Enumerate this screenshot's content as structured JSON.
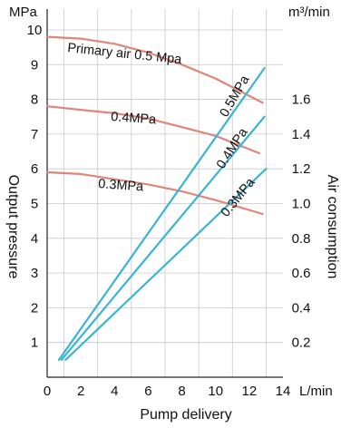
{
  "chart_data": {
    "type": "line",
    "xlabel": "Pump delivery",
    "x_unit": "L/min",
    "xlim": [
      0,
      14
    ],
    "xticks": [
      0,
      2,
      4,
      6,
      8,
      10,
      12,
      14
    ],
    "ylabel_left": "Output pressure",
    "y_unit_left": "MPa",
    "ylim_left": [
      0,
      10.6
    ],
    "yticks_left": [
      1,
      2,
      3,
      4,
      5,
      6,
      7,
      8,
      9,
      10
    ],
    "ylabel_right": "Air consumption",
    "y_unit_right": "m³/min",
    "ylim_right": [
      0,
      2.12
    ],
    "yticks_right": [
      0.2,
      0.4,
      0.6,
      0.8,
      1.0,
      1.2,
      1.4,
      1.6
    ],
    "grid": true,
    "series": [
      {
        "name": "Primary air 0.5 Mpa",
        "axis": "left",
        "kind": "output_pressure",
        "color": "#e0857a",
        "x": [
          0,
          2,
          4,
          6,
          8,
          10,
          12.8
        ],
        "y": [
          9.8,
          9.75,
          9.6,
          9.35,
          9.0,
          8.6,
          7.9
        ]
      },
      {
        "name": "0.4MPa",
        "axis": "left",
        "kind": "output_pressure",
        "color": "#e0857a",
        "x": [
          0,
          2,
          4,
          6,
          8,
          10,
          12.6
        ],
        "y": [
          7.8,
          7.7,
          7.6,
          7.45,
          7.2,
          6.95,
          6.45
        ]
      },
      {
        "name": "0.3MPa",
        "axis": "left",
        "kind": "output_pressure",
        "color": "#e0857a",
        "x": [
          0,
          2,
          4,
          6,
          8,
          10,
          12.8
        ],
        "y": [
          5.9,
          5.85,
          5.7,
          5.55,
          5.35,
          5.1,
          4.7
        ]
      },
      {
        "name": "0.5MPa",
        "axis": "right",
        "kind": "air_consumption",
        "color": "#3bb4d4",
        "x": [
          0.7,
          12.9
        ],
        "y": [
          0.1,
          1.78
        ]
      },
      {
        "name": "0.4MPa",
        "axis": "right",
        "kind": "air_consumption",
        "color": "#3bb4d4",
        "x": [
          0.85,
          12.9
        ],
        "y": [
          0.1,
          1.5
        ]
      },
      {
        "name": "0.3MPa",
        "axis": "right",
        "kind": "air_consumption",
        "color": "#3bb4d4",
        "x": [
          1.1,
          13.0
        ],
        "y": [
          0.1,
          1.2
        ]
      }
    ]
  }
}
